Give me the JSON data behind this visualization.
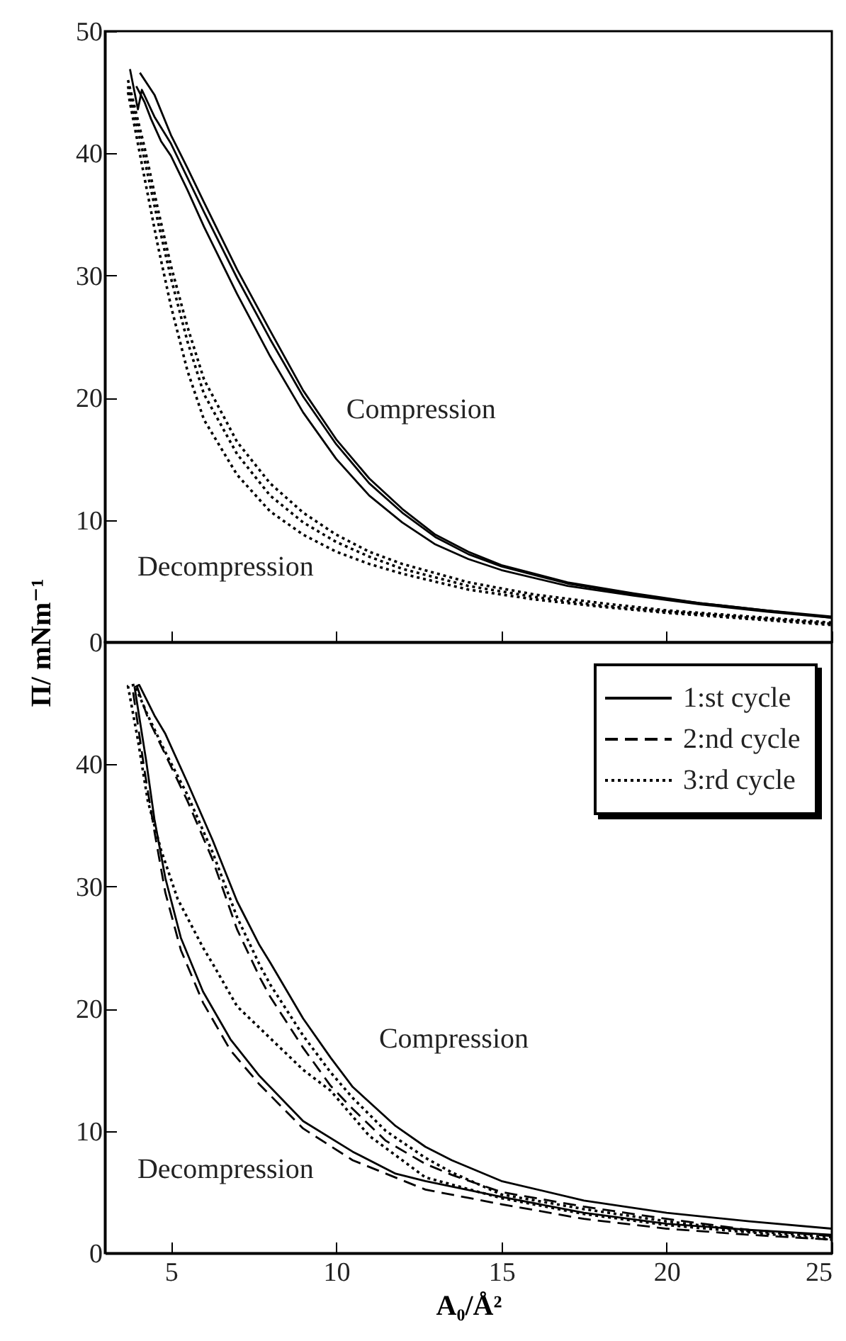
{
  "chart_data": [
    {
      "type": "line",
      "xlim": [
        3,
        25
      ],
      "xticks": [
        5,
        10,
        15,
        20,
        25
      ],
      "ylim": [
        0,
        50
      ],
      "yticks": [
        0,
        10,
        20,
        30,
        40,
        50
      ],
      "tick_labels": "y",
      "legend": false,
      "annotations": [
        "Compression",
        "Decompression"
      ],
      "series": [
        {
          "color": "#000000",
          "line_style": "solid",
          "x": [
            4.06,
            4.5,
            5,
            5.5,
            6,
            7,
            8,
            9,
            10,
            11,
            12,
            13,
            14,
            15,
            17,
            19,
            21,
            23,
            25
          ],
          "values": [
            46.6,
            44.8,
            41.5,
            38.8,
            36,
            30.5,
            25.5,
            20.6,
            16.6,
            13.4,
            10.9,
            8.8,
            7.4,
            6.3,
            4.9,
            4.0,
            3.2,
            2.6,
            2.1
          ]
        },
        {
          "color": "#000000",
          "line_style": "solid",
          "x": [
            3.76,
            4.0,
            4.12,
            4.5,
            5,
            5.5,
            6,
            7,
            8,
            9,
            10,
            11,
            12,
            13,
            14,
            15,
            17,
            19,
            21,
            23,
            25
          ],
          "values": [
            46.9,
            43.6,
            45.2,
            43,
            40.8,
            38,
            35.2,
            29.8,
            24.8,
            20.1,
            16.2,
            13.0,
            10.6,
            8.6,
            7.2,
            6.2,
            4.8,
            3.9,
            3.2,
            2.6,
            2.0
          ]
        },
        {
          "color": "#000000",
          "line_style": "solid",
          "x": [
            3.95,
            4.2,
            4.4,
            4.7,
            5,
            5.5,
            6,
            7,
            8,
            9,
            10,
            11,
            12,
            13,
            14,
            15,
            17,
            19,
            21,
            23,
            25
          ],
          "values": [
            45.5,
            44.2,
            42.8,
            41.0,
            39.8,
            37.0,
            34.0,
            28.5,
            23.4,
            18.8,
            15.0,
            12.0,
            9.8,
            8.0,
            6.8,
            5.9,
            4.6,
            3.8,
            3.1,
            2.5,
            2.0
          ]
        },
        {
          "color": "#000000",
          "line_style": "dotted",
          "x": [
            3.7,
            4.2,
            4.6,
            5,
            5.5,
            6,
            7,
            8,
            9,
            10,
            11,
            12,
            14,
            16,
            18,
            20,
            22,
            25
          ],
          "values": [
            46.0,
            40.5,
            35.5,
            30.8,
            25.8,
            21.5,
            16.4,
            13.0,
            10.6,
            8.8,
            7.4,
            6.4,
            4.9,
            3.9,
            3.2,
            2.6,
            2.2,
            1.6
          ]
        },
        {
          "color": "#000000",
          "line_style": "dotted",
          "x": [
            3.7,
            4.2,
            4.6,
            5,
            5.5,
            6,
            7,
            8,
            9,
            10,
            11,
            12,
            14,
            16,
            18,
            20,
            22,
            25
          ],
          "values": [
            45.5,
            39.5,
            34.5,
            29.8,
            24.6,
            20.3,
            15.4,
            12.0,
            9.8,
            8.2,
            7.0,
            6.0,
            4.6,
            3.7,
            3.0,
            2.5,
            2.1,
            1.5
          ]
        },
        {
          "color": "#000000",
          "line_style": "dotted",
          "x": [
            3.7,
            4.2,
            4.6,
            5,
            5.5,
            6,
            7,
            8,
            9,
            10,
            11,
            12,
            14,
            16,
            18,
            20,
            22,
            25
          ],
          "values": [
            45.0,
            38.0,
            32.5,
            27.5,
            22.2,
            18.2,
            13.7,
            10.7,
            8.8,
            7.4,
            6.4,
            5.6,
            4.3,
            3.5,
            2.9,
            2.4,
            2.0,
            1.4
          ]
        }
      ]
    },
    {
      "type": "line",
      "xlim": [
        3,
        25
      ],
      "xticks": [
        5,
        10,
        15,
        20,
        25
      ],
      "ylim": [
        0,
        50
      ],
      "yticks": [
        0,
        10,
        20,
        30,
        40,
        {
          "value": 50,
          "label": null
        }
      ],
      "xlabel": "A₀/Å²",
      "ylabel": "Π/ mNm⁻¹",
      "legend": "top right",
      "annotations": [
        "Compression",
        "Decompression"
      ],
      "series": [
        {
          "name": "1:st cycle",
          "color": "#000000",
          "line_style": "solid",
          "x": [
            25,
            22.5,
            20,
            17.5,
            15,
            13.5,
            12.7,
            11.8,
            10.5,
            9.83,
            9,
            8,
            7.68,
            7,
            6.26,
            5.5,
            4.83,
            4.5,
            4.04,
            3.9,
            4.25,
            4.5,
            4.83,
            5.3,
            5.97,
            6.8,
            7.68,
            9,
            10.5,
            11.8,
            12.7,
            15,
            17.5,
            20,
            22.5,
            25
          ],
          "values": [
            2.0,
            2.6,
            3.3,
            4.3,
            5.9,
            7.6,
            8.7,
            10.4,
            13.6,
            16.0,
            19.2,
            23.8,
            25.2,
            28.8,
            33.8,
            38.5,
            42.5,
            44.0,
            46.5,
            46.3,
            40.3,
            35.5,
            30.7,
            25.8,
            21.4,
            17.5,
            14.5,
            10.8,
            8.3,
            6.5,
            5.9,
            4.6,
            3.3,
            2.4,
            1.9,
            1.5
          ]
        },
        {
          "name": "2:nd cycle",
          "color": "#000000",
          "line_style": "dashed",
          "x": [
            25,
            22.5,
            20,
            17.5,
            15,
            13.5,
            12.7,
            11.5,
            10.5,
            9.83,
            9,
            8,
            7.7,
            7,
            6.26,
            5.5,
            4.83,
            4.3,
            3.97,
            3.85,
            4.2,
            4.5,
            4.83,
            5.3,
            5.97,
            6.8,
            7.68,
            9,
            10.5,
            12.7,
            15,
            17.5,
            20,
            22.5,
            25
          ],
          "values": [
            1.4,
            1.9,
            2.8,
            3.8,
            5.0,
            6.4,
            7.3,
            9.2,
            11.8,
            13.7,
            16.8,
            21.0,
            22.5,
            26.5,
            32.2,
            37.0,
            40.8,
            43.8,
            46.4,
            46.0,
            39.5,
            34.5,
            29.5,
            24.8,
            20.5,
            16.6,
            13.8,
            10.2,
            7.6,
            5.2,
            4.0,
            2.8,
            2.0,
            1.5,
            1.1
          ]
        },
        {
          "name": "3:rd cycle",
          "color": "#000000",
          "line_style": "dotted",
          "x": [
            25,
            22.5,
            20,
            17.5,
            15,
            13.5,
            12.7,
            11.5,
            10.5,
            9.83,
            9,
            8,
            7.7,
            7,
            6.26,
            5.5,
            4.83,
            4.3,
            3.9,
            3.7,
            4.0,
            4.3,
            4.7,
            5.2,
            5.97,
            6.26,
            7,
            8,
            9,
            9.83,
            11,
            12.7,
            15,
            17.5,
            20,
            22.5,
            25
          ],
          "values": [
            1.3,
            1.8,
            2.6,
            3.6,
            4.8,
            6.6,
            7.8,
            10.0,
            12.7,
            14.8,
            17.8,
            22.0,
            23.5,
            27.5,
            32.8,
            37.5,
            41.0,
            44.0,
            46.5,
            46.4,
            42.0,
            37.0,
            33.0,
            29.0,
            25.0,
            23.7,
            20.2,
            17.6,
            15.0,
            13.3,
            9.6,
            6.2,
            4.5,
            3.2,
            2.3,
            1.7,
            1.1
          ]
        }
      ]
    }
  ]
}
